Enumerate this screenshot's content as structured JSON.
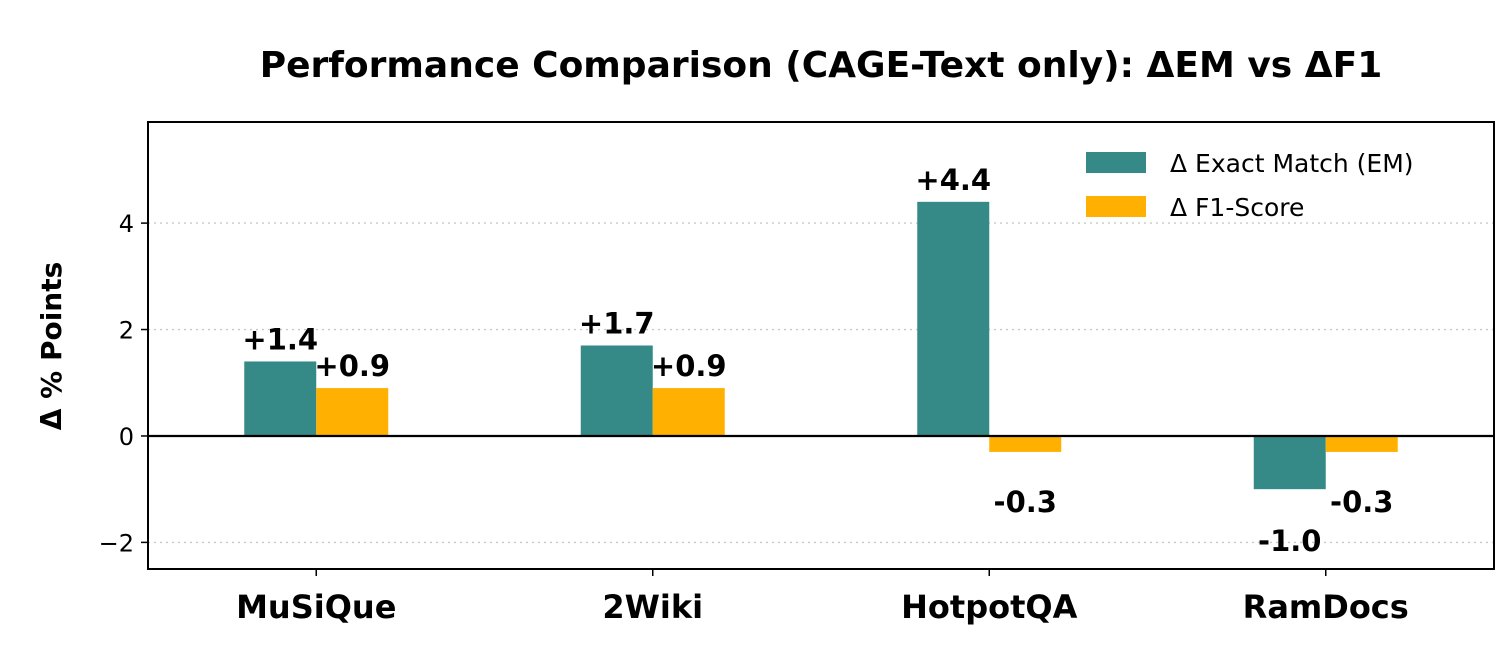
{
  "chart_data": {
    "type": "bar",
    "title": "Performance Comparison (CAGE-Text only): ΔEM vs ΔF1",
    "xlabel": "",
    "ylabel": "Δ % Points",
    "categories": [
      "MuSiQue",
      "2Wiki",
      "HotpotQA",
      "RamDocs"
    ],
    "series": [
      {
        "name": "Δ Exact Match (EM)",
        "values": [
          1.4,
          1.7,
          4.4,
          -1.0
        ],
        "labels": [
          "+1.4",
          "+1.7",
          "+4.4",
          "-1.0"
        ],
        "color": "#358a87"
      },
      {
        "name": "Δ F1-Score",
        "values": [
          0.9,
          0.9,
          -0.3,
          -0.3
        ],
        "labels": [
          "+0.9",
          "+0.9",
          "-0.3",
          "-0.3"
        ],
        "color": "#ffb000"
      }
    ],
    "ylim": [
      -2.5,
      5.9
    ],
    "yticks": [
      -2,
      0,
      2,
      4
    ],
    "ytick_labels": [
      "−2",
      "0",
      "2",
      "4"
    ],
    "grid": "y-dotted",
    "zero_line": true,
    "legend_position": "top-right"
  }
}
